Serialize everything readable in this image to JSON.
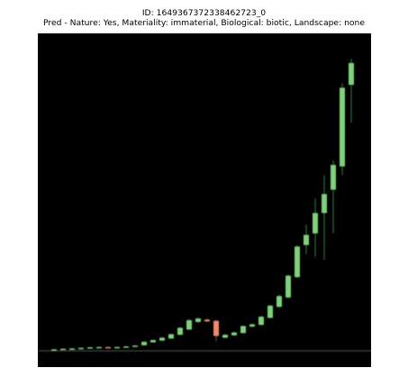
{
  "header": {
    "id_line": "ID: 1649367372338462723_0",
    "pred_line": "Pred - Nature: Yes, Materiality: immaterial, Biological: biotic, Landscape: none"
  },
  "colors": {
    "background": "#000000",
    "up": "#7ed07a",
    "down": "#f08a6a",
    "wick": "#2f6b3a",
    "baseline": "#3a3a3a"
  },
  "chart_data": {
    "type": "candlestick",
    "title": "",
    "xlabel": "",
    "ylabel": "",
    "grid": false,
    "legend": "none",
    "ylim": [
      0,
      100
    ],
    "candles": [
      {
        "open": 0.0,
        "close": 0.2,
        "high": 0.4,
        "low": 0.0
      },
      {
        "open": 0.2,
        "close": 0.4,
        "high": 0.6,
        "low": 0.1
      },
      {
        "open": 0.3,
        "close": 0.5,
        "high": 0.7,
        "low": 0.2
      },
      {
        "open": 0.4,
        "close": 0.7,
        "high": 0.9,
        "low": 0.3
      },
      {
        "open": 0.6,
        "close": 0.9,
        "high": 1.1,
        "low": 0.5
      },
      {
        "open": 0.8,
        "close": 1.0,
        "high": 1.2,
        "low": 0.7
      },
      {
        "open": 1.0,
        "close": 0.8,
        "high": 1.2,
        "low": 0.6
      },
      {
        "open": 0.8,
        "close": 1.0,
        "high": 1.2,
        "low": 0.7
      },
      {
        "open": 0.9,
        "close": 1.2,
        "high": 1.4,
        "low": 0.8
      },
      {
        "open": 1.1,
        "close": 1.5,
        "high": 1.7,
        "low": 1.0
      },
      {
        "open": 1.6,
        "close": 2.8,
        "high": 3.0,
        "low": 1.5
      },
      {
        "open": 2.6,
        "close": 3.4,
        "high": 3.6,
        "low": 2.5
      },
      {
        "open": 3.2,
        "close": 4.2,
        "high": 4.5,
        "low": 3.1
      },
      {
        "open": 3.9,
        "close": 5.4,
        "high": 5.7,
        "low": 3.8
      },
      {
        "open": 5.2,
        "close": 7.6,
        "high": 8.0,
        "low": 5.0
      },
      {
        "open": 7.0,
        "close": 10.2,
        "high": 10.6,
        "low": 6.8
      },
      {
        "open": 9.6,
        "close": 10.8,
        "high": 11.2,
        "low": 9.2
      },
      {
        "open": 10.4,
        "close": 9.8,
        "high": 10.8,
        "low": 9.5
      },
      {
        "open": 10.0,
        "close": 4.8,
        "high": 10.3,
        "low": 3.0
      },
      {
        "open": 4.2,
        "close": 5.2,
        "high": 5.5,
        "low": 4.0
      },
      {
        "open": 5.0,
        "close": 6.0,
        "high": 6.3,
        "low": 4.8
      },
      {
        "open": 5.8,
        "close": 8.2,
        "high": 8.5,
        "low": 5.6
      },
      {
        "open": 8.0,
        "close": 8.8,
        "high": 9.1,
        "low": 7.8
      },
      {
        "open": 8.6,
        "close": 11.4,
        "high": 11.8,
        "low": 8.4
      },
      {
        "open": 11.0,
        "close": 15.2,
        "high": 15.6,
        "low": 10.8
      },
      {
        "open": 14.8,
        "close": 18.5,
        "high": 19.0,
        "low": 14.5
      },
      {
        "open": 18.0,
        "close": 25.5,
        "high": 26.0,
        "low": 17.8
      },
      {
        "open": 25.0,
        "close": 35.5,
        "high": 36.0,
        "low": 24.6
      },
      {
        "open": 36.0,
        "close": 39.5,
        "high": 43.0,
        "low": 33.0
      },
      {
        "open": 40.0,
        "close": 47.0,
        "high": 52.0,
        "low": 32.0
      },
      {
        "open": 47.0,
        "close": 53.5,
        "high": 60.0,
        "low": 31.0
      },
      {
        "open": 55.0,
        "close": 63.5,
        "high": 65.0,
        "low": 40.0
      },
      {
        "open": 63.0,
        "close": 90.0,
        "high": 91.5,
        "low": 60.0
      },
      {
        "open": 91.0,
        "close": 98.5,
        "high": 100.0,
        "low": 78.0
      }
    ]
  }
}
